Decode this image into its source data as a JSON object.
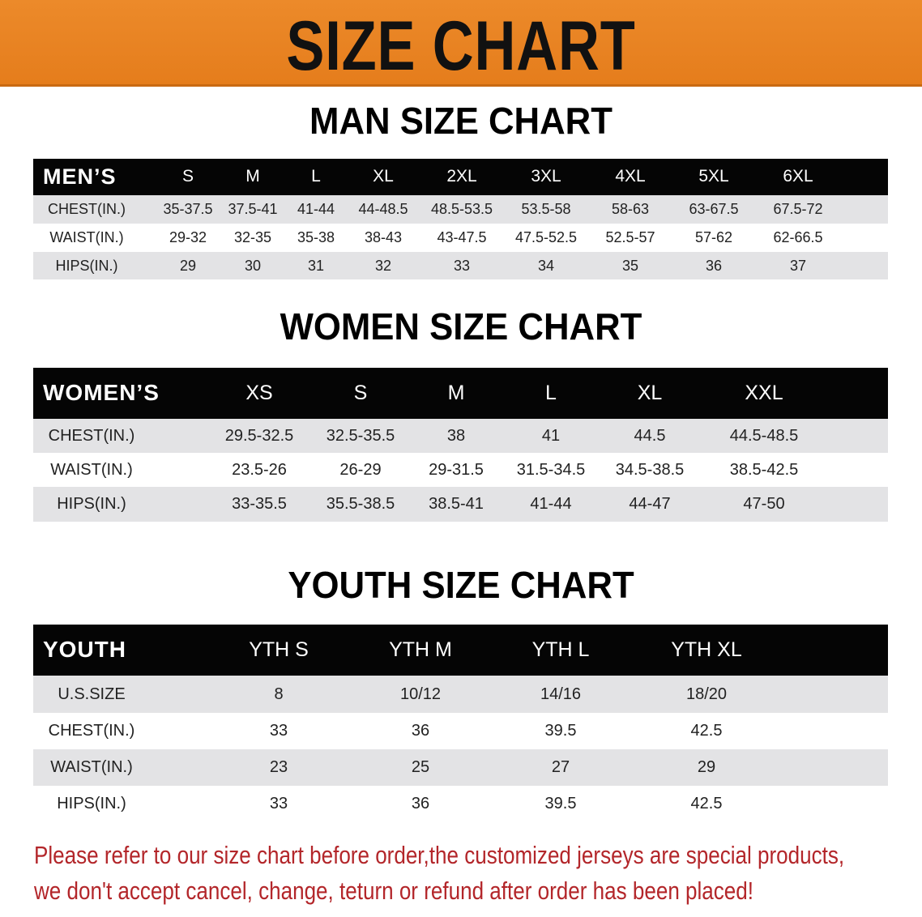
{
  "banner": {
    "title": "SIZE CHART",
    "color": "#e8841f"
  },
  "men": {
    "title": "MAN SIZE CHART",
    "header_label": "MEN’S",
    "sizes": [
      "S",
      "M",
      "L",
      "XL",
      "2XL",
      "3XL",
      "4XL",
      "5XL",
      "6XL"
    ],
    "rows": [
      {
        "label": "CHEST(IN.)",
        "values": [
          "35-37.5",
          "37.5-41",
          "41-44",
          "44-48.5",
          "48.5-53.5",
          "53.5-58",
          "58-63",
          "63-67.5",
          "67.5-72"
        ]
      },
      {
        "label": "WAIST(IN.)",
        "values": [
          "29-32",
          "32-35",
          "35-38",
          "38-43",
          "43-47.5",
          "47.5-52.5",
          "52.5-57",
          "57-62",
          "62-66.5"
        ]
      },
      {
        "label": "HIPS(IN.)",
        "values": [
          "29",
          "30",
          "31",
          "32",
          "33",
          "34",
          "35",
          "36",
          "37"
        ]
      }
    ]
  },
  "women": {
    "title": "WOMEN SIZE CHART",
    "header_label": "WOMEN’S",
    "sizes": [
      "XS",
      "S",
      "M",
      "L",
      "XL",
      "XXL"
    ],
    "rows": [
      {
        "label": "CHEST(IN.)",
        "values": [
          "29.5-32.5",
          "32.5-35.5",
          "38",
          "41",
          "44.5",
          "44.5-48.5"
        ]
      },
      {
        "label": "WAIST(IN.)",
        "values": [
          "23.5-26",
          "26-29",
          "29-31.5",
          "31.5-34.5",
          "34.5-38.5",
          "38.5-42.5"
        ]
      },
      {
        "label": "HIPS(IN.)",
        "values": [
          "33-35.5",
          "35.5-38.5",
          "38.5-41",
          "41-44",
          "44-47",
          "47-50"
        ]
      }
    ]
  },
  "youth": {
    "title": "YOUTH SIZE CHART",
    "header_label": "YOUTH",
    "sizes": [
      "YTH S",
      "YTH M",
      "YTH L",
      "YTH XL"
    ],
    "rows": [
      {
        "label": "U.S.SIZE",
        "values": [
          "8",
          "10/12",
          "14/16",
          "18/20"
        ]
      },
      {
        "label": "CHEST(IN.)",
        "values": [
          "33",
          "36",
          "39.5",
          "42.5"
        ]
      },
      {
        "label": "WAIST(IN.)",
        "values": [
          "23",
          "25",
          "27",
          "29"
        ]
      },
      {
        "label": "HIPS(IN.)",
        "values": [
          "33",
          "36",
          "39.5",
          "42.5"
        ]
      }
    ]
  },
  "notice": {
    "line1": "Please refer to our size chart before order,the customized jerseys are special products,",
    "line2": "we don't accept cancel, change, teturn or refund after order has been placed!",
    "color": "#b3262a"
  }
}
